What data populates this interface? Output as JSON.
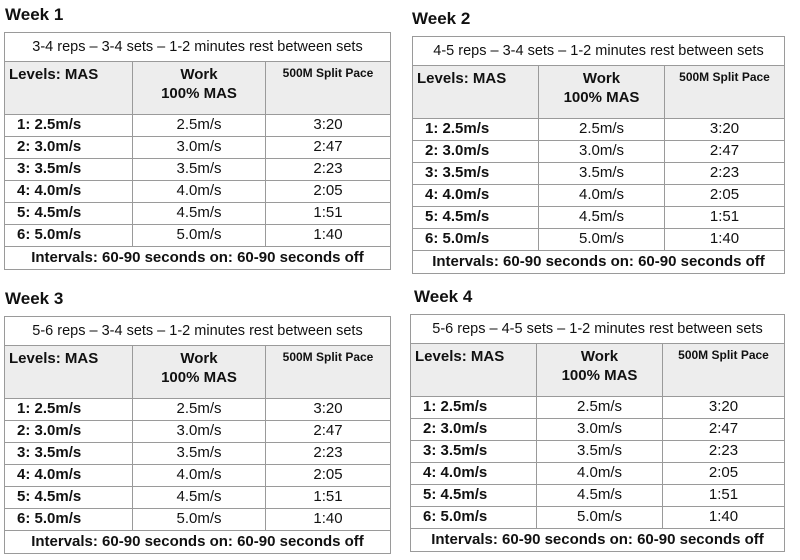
{
  "columns": {
    "levels": "Levels: MAS",
    "work_line1": "Work",
    "work_line2": "100% MAS",
    "split": "500M Split Pace"
  },
  "weeks": [
    {
      "title": "Week 1",
      "description": "3-4 reps – 3-4 sets – 1-2 minutes rest between sets",
      "rows": [
        {
          "level": "1: 2.5m/s",
          "work": "2.5m/s",
          "split": "3:20"
        },
        {
          "level": "2: 3.0m/s",
          "work": "3.0m/s",
          "split": "2:47"
        },
        {
          "level": "3: 3.5m/s",
          "work": "3.5m/s",
          "split": "2:23"
        },
        {
          "level": "4: 4.0m/s",
          "work": "4.0m/s",
          "split": "2:05"
        },
        {
          "level": "5: 4.5m/s",
          "work": "4.5m/s",
          "split": "1:51"
        },
        {
          "level": "6: 5.0m/s",
          "work": "5.0m/s",
          "split": "1:40"
        }
      ],
      "footer": "Intervals: 60-90 seconds on: 60-90 seconds off"
    },
    {
      "title": "Week 2",
      "description": "4-5 reps – 3-4 sets – 1-2 minutes rest between sets",
      "rows": [
        {
          "level": "1: 2.5m/s",
          "work": "2.5m/s",
          "split": "3:20"
        },
        {
          "level": "2: 3.0m/s",
          "work": "3.0m/s",
          "split": "2:47"
        },
        {
          "level": "3: 3.5m/s",
          "work": "3.5m/s",
          "split": "2:23"
        },
        {
          "level": "4: 4.0m/s",
          "work": "4.0m/s",
          "split": "2:05"
        },
        {
          "level": "5: 4.5m/s",
          "work": "4.5m/s",
          "split": "1:51"
        },
        {
          "level": "6: 5.0m/s",
          "work": "5.0m/s",
          "split": "1:40"
        }
      ],
      "footer": "Intervals: 60-90 seconds on: 60-90 seconds off"
    },
    {
      "title": "Week 3",
      "description": "5-6 reps – 3-4 sets – 1-2 minutes rest between sets",
      "rows": [
        {
          "level": "1: 2.5m/s",
          "work": "2.5m/s",
          "split": "3:20"
        },
        {
          "level": "2: 3.0m/s",
          "work": "3.0m/s",
          "split": "2:47"
        },
        {
          "level": "3: 3.5m/s",
          "work": "3.5m/s",
          "split": "2:23"
        },
        {
          "level": "4: 4.0m/s",
          "work": "4.0m/s",
          "split": "2:05"
        },
        {
          "level": "5: 4.5m/s",
          "work": "4.5m/s",
          "split": "1:51"
        },
        {
          "level": "6: 5.0m/s",
          "work": "5.0m/s",
          "split": "1:40"
        }
      ],
      "footer": "Intervals: 60-90 seconds on: 60-90 seconds off"
    },
    {
      "title": "Week 4",
      "description": "5-6 reps – 4-5 sets – 1-2 minutes rest between sets",
      "rows": [
        {
          "level": "1: 2.5m/s",
          "work": "2.5m/s",
          "split": "3:20"
        },
        {
          "level": "2: 3.0m/s",
          "work": "3.0m/s",
          "split": "2:47"
        },
        {
          "level": "3: 3.5m/s",
          "work": "3.5m/s",
          "split": "2:23"
        },
        {
          "level": "4: 4.0m/s",
          "work": "4.0m/s",
          "split": "2:05"
        },
        {
          "level": "5: 4.5m/s",
          "work": "4.5m/s",
          "split": "1:51"
        },
        {
          "level": "6: 5.0m/s",
          "work": "5.0m/s",
          "split": "1:40"
        }
      ],
      "footer": "Intervals: 60-90 seconds on: 60-90 seconds off"
    }
  ]
}
